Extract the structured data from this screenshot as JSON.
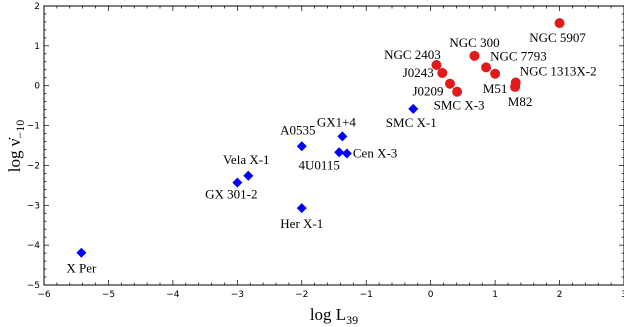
{
  "chart_data": {
    "type": "scatter",
    "xlabel": {
      "base": "log L",
      "sub": "39"
    },
    "ylabel": {
      "base": "log ν̇",
      "sub": "−10"
    },
    "xlim": [
      -6,
      3
    ],
    "ylim": [
      -5,
      2
    ],
    "x_ticks": [
      -6,
      -5,
      -4,
      -3,
      -2,
      -1,
      0,
      1,
      2,
      3
    ],
    "x_tick_labels": [
      "−6",
      "−5",
      "−4",
      "−3",
      "−2",
      "−1",
      "0",
      "1",
      "2",
      "3"
    ],
    "y_ticks": [
      -5,
      -4,
      -3,
      -2,
      -1,
      0,
      1,
      2
    ],
    "y_tick_labels": [
      "−5",
      "−4",
      "−3",
      "−2",
      "−1",
      "0",
      "1",
      "2"
    ],
    "grid": false,
    "series": [
      {
        "marker": "diamond",
        "color": "#0000ff",
        "points": [
          {
            "label": "X Per",
            "x": -5.42,
            "y": -4.19
          },
          {
            "label": "Her X-1",
            "x": -2.0,
            "y": -3.07
          },
          {
            "label": "GX 301-2",
            "x": -3.0,
            "y": -2.43
          },
          {
            "label": "Vela X-1",
            "x": -2.83,
            "y": -2.26
          },
          {
            "label": "A0535",
            "x": -2.0,
            "y": -1.52
          },
          {
            "label": "4U0115",
            "x": -1.42,
            "y": -1.67
          },
          {
            "label": "Cen X-3",
            "x": -1.3,
            "y": -1.7
          },
          {
            "label": "GX1+4",
            "x": -1.37,
            "y": -1.27
          },
          {
            "label": "SMC X-1",
            "x": -0.27,
            "y": -0.58
          }
        ]
      },
      {
        "marker": "circle",
        "color": "#e31a1c",
        "points": [
          {
            "label": "NGC 5907",
            "x": 2.0,
            "y": 1.57
          },
          {
            "label": "NGC 300",
            "x": 0.68,
            "y": 0.75
          },
          {
            "label": "NGC 2403",
            "x": 0.09,
            "y": 0.52
          },
          {
            "label": "J0243",
            "x": 0.18,
            "y": 0.32
          },
          {
            "label": "NGC 7793",
            "x": 0.86,
            "y": 0.46
          },
          {
            "label": "M51",
            "x": 1.0,
            "y": 0.3
          },
          {
            "label": "J0209",
            "x": 0.3,
            "y": 0.05
          },
          {
            "label": "SMC X-3",
            "x": 0.41,
            "y": -0.15
          },
          {
            "label": "NGC 1313X-2",
            "x": 1.32,
            "y": 0.08
          },
          {
            "label": "M82",
            "x": 1.31,
            "y": -0.03
          }
        ]
      }
    ]
  }
}
